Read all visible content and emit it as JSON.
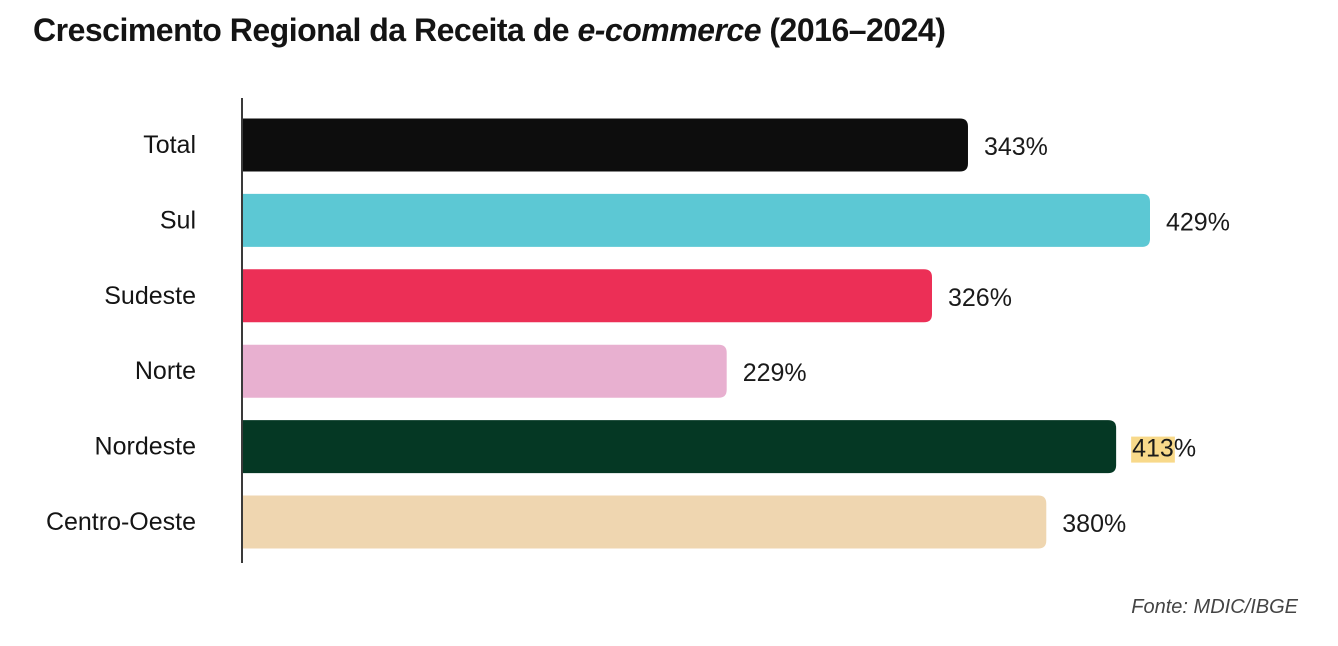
{
  "chart_data": {
    "type": "bar",
    "orientation": "horizontal",
    "title": {
      "prefix": "Crescimento Regional da Receita de ",
      "emphasis": "e-commerce",
      "suffix": " (2016–2024)"
    },
    "categories": [
      "Total",
      "Sul",
      "Sudeste",
      "Norte",
      "Nordeste",
      "Centro-Oeste"
    ],
    "values": [
      343,
      429,
      326,
      229,
      413,
      380
    ],
    "value_labels": [
      "343%",
      "429%",
      "326%",
      "229%",
      "413%",
      "380%"
    ],
    "colors": [
      "#0d0d0d",
      "#5cc8d4",
      "#ec2f56",
      "#e8b0d0",
      "#053824",
      "#efd6b0"
    ],
    "highlight": {
      "index": 4,
      "text": "413",
      "color": "#f8d98a"
    },
    "unit": "%",
    "xlim": [
      0,
      429
    ],
    "grid": false,
    "legend": "none"
  },
  "source": "Fonte: MDIC/IBGE"
}
